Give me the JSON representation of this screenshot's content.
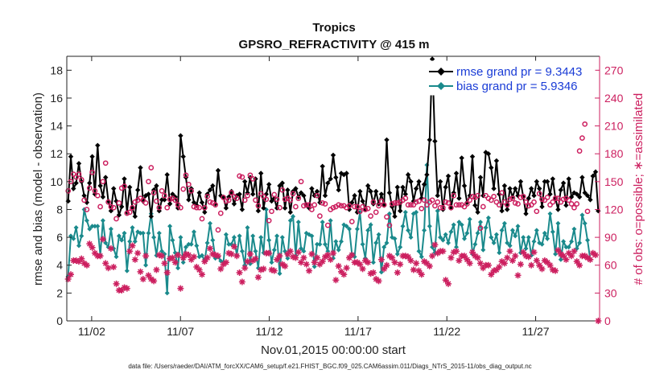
{
  "chart_data": {
    "type": "line",
    "title": "Tropics",
    "subtitle": "GPSRO_REFRACTIVITY @ 415 m",
    "xlabel": "Nov.01,2015 00:00:00 start",
    "ylabel": "rmse and bias (model - observation)",
    "y2label": "# of obs: o=possible; ∗=assimilated",
    "footnote": "data file: /Users/raeder/DAI/ATM_forcXX/CAM6_setup/f.e21.FHIST_BGC.f09_025.CAM6assim.011/Diags_NTrS_2015-11/obs_diag_output.nc",
    "xlim": [
      0.6,
      30.6
    ],
    "ylim": [
      0,
      19
    ],
    "y2lim": [
      0,
      285
    ],
    "xticks": [
      {
        "x": 2,
        "label": "11/02"
      },
      {
        "x": 7,
        "label": "11/07"
      },
      {
        "x": 12,
        "label": "11/12"
      },
      {
        "x": 17,
        "label": "11/17"
      },
      {
        "x": 22,
        "label": "11/22"
      },
      {
        "x": 27,
        "label": "11/27"
      }
    ],
    "yticks": [
      "0",
      "2",
      "4",
      "6",
      "8",
      "10",
      "12",
      "14",
      "16",
      "18"
    ],
    "yticks_right": [
      "0",
      "30",
      "60",
      "90",
      "120",
      "150",
      "180",
      "210",
      "240",
      "270"
    ],
    "legend": [
      {
        "label": "rmse grand pr = 9.3443",
        "color": "#000000"
      },
      {
        "label": "bias grand pr = 5.9346",
        "color": "#1a8a8c"
      }
    ],
    "series": [
      {
        "name": "rmse",
        "color": "#000000",
        "marker": "diamond",
        "values": [
          8.6,
          11.8,
          9.5,
          9.9,
          11.3,
          10.0,
          9.0,
          8.5,
          9.9,
          11.8,
          9.1,
          12.6,
          9.7,
          8.9,
          10.3,
          8.6,
          7.9,
          9.5,
          8.6,
          7.6,
          8.2,
          10.2,
          7.8,
          9.6,
          8.1,
          7.5,
          9.4,
          11.0,
          8.6,
          9.0,
          9.1,
          7.5,
          9.4,
          9.7,
          7.9,
          8.7,
          8.7,
          10.5,
          8.4,
          9.1,
          8.9,
          8.1,
          13.3,
          11.8,
          10.3,
          8.7,
          9.5,
          8.5,
          8.3,
          9.2,
          8.5,
          7.8,
          9.1,
          9.4,
          9.7,
          8.4,
          10.8,
          9.0,
          8.9,
          8.1,
          8.9,
          9.3,
          8.4,
          9.0,
          9.1,
          8.0,
          10.0,
          9.2,
          10.3,
          9.1,
          10.2,
          7.9,
          10.6,
          8.1,
          9.1,
          9.8,
          8.6,
          8.8,
          8.1,
          9.7,
          9.9,
          8.1,
          9.4,
          7.8,
          9.3,
          9.5,
          8.9,
          9.2,
          9.0,
          8.3,
          8.1,
          9.5,
          9.0,
          9.3,
          8.5,
          11.1,
          9.0,
          9.9,
          10.2,
          11.9,
          10.3,
          9.4,
          10.6,
          10.5,
          10.6,
          8.0,
          8.5,
          9.0,
          7.8,
          9.3,
          8.6,
          8.0,
          9.7,
          9.3,
          8.4,
          9.3,
          8.4,
          9.1,
          8.3,
          13.0,
          9.2,
          8.2,
          7.5,
          9.6,
          7.9,
          9.6,
          9.1,
          10.5,
          10.0,
          8.6,
          9.5,
          10.0,
          8.8,
          9.8,
          10.5,
          13.0,
          18.8,
          12.9,
          9.0,
          10.0,
          8.0,
          9.6,
          10.4,
          8.1,
          9.2,
          10.6,
          8.8,
          11.7,
          9.7,
          8.5,
          9.0,
          11.8,
          8.3,
          7.8,
          10.3,
          9.0,
          12.1,
          12.0,
          11.0,
          9.5,
          11.5,
          9.1,
          7.9,
          9.7,
          8.0,
          9.5,
          8.9,
          9.5,
          9.0,
          10.0,
          8.9,
          7.7,
          8.8,
          9.5,
          9.0,
          10.0,
          9.5,
          8.2,
          10.0,
          10.0,
          9.1,
          10.2,
          8.8,
          8.0,
          9.4,
          9.9,
          8.3,
          10.2,
          8.9,
          9.2,
          9.1,
          8.9,
          10.3,
          9.2,
          9.0,
          8.7,
          10.4,
          10.7,
          7.9
        ]
      },
      {
        "name": "bias",
        "color": "#1a8a8c",
        "marker": "diamond",
        "values": [
          3.2,
          6.1,
          5.9,
          6.7,
          5.4,
          6.1,
          8.0,
          7.2,
          6.6,
          6.8,
          6.8,
          6.8,
          4.7,
          7.2,
          5.6,
          5.3,
          6.6,
          5.2,
          4.6,
          6.1,
          5.8,
          6.3,
          3.6,
          5.7,
          6.7,
          5.7,
          6.4,
          6.3,
          6.3,
          4.0,
          6.3,
          7.7,
          6.0,
          4.7,
          6.3,
          5.0,
          4.8,
          2.0,
          6.8,
          5.8,
          4.9,
          3.8,
          6.0,
          4.2,
          5.3,
          5.5,
          5.5,
          6.4,
          5.4,
          4.6,
          4.7,
          4.3,
          5.6,
          7.0,
          5.8,
          4.5,
          4.6,
          4.3,
          4.2,
          6.2,
          5.5,
          5.5,
          6.0,
          4.7,
          6.1,
          5.0,
          4.0,
          6.7,
          4.1,
          6.1,
          5.0,
          3.8,
          6.0,
          4.9,
          8.0,
          5.8,
          4.2,
          5.1,
          6.1,
          3.4,
          6.0,
          5.0,
          4.5,
          7.2,
          7.5,
          4.7,
          7.1,
          5.2,
          5.0,
          6.3,
          6.2,
          6.1,
          3.9,
          5.5,
          5.5,
          7.1,
          5.5,
          5.0,
          7.2,
          4.5,
          5.7,
          5.1,
          5.7,
          6.9,
          6.8,
          6.6,
          4.8,
          4.6,
          6.6,
          7.8,
          5.5,
          4.5,
          6.5,
          6.9,
          4.2,
          5.6,
          6.2,
          3.5,
          5.3,
          5.6,
          7.7,
          6.0,
          5.9,
          4.8,
          5.3,
          6.8,
          7.8,
          6.5,
          6.0,
          7.7,
          7.8,
          5.0,
          4.6,
          6.5,
          11.2,
          6.8,
          5.3,
          4.9,
          7.9,
          6.0,
          5.8,
          6.2,
          5.6,
          6.4,
          6.9,
          5.3,
          7.1,
          6.9,
          5.9,
          6.3,
          7.3,
          4.8,
          5.5,
          6.3,
          7.1,
          5.1,
          6.7,
          7.4,
          6.0,
          5.6,
          6.2,
          4.9,
          6.5,
          7.0,
          5.6,
          5.4,
          6.5,
          6.1,
          6.8,
          4.9,
          6.0,
          5.2,
          6.0,
          4.7,
          5.7,
          6.5,
          5.6,
          5.5,
          6.3,
          5.9,
          7.7,
          6.4,
          4.8,
          7.0,
          4.4,
          5.7,
          5.3,
          5.3,
          5.7,
          6.6,
          5.2,
          5.6,
          7.6,
          7.0,
          5.8,
          4.4
        ]
      },
      {
        "name": "possible_obs",
        "color": "#cc1f5f",
        "marker": "circle",
        "axis": "right",
        "values": [
          140,
          150,
          158,
          155,
          158,
          152,
          130,
          120,
          143,
          160,
          140,
          135,
          123,
          150,
          170,
          128,
          123,
          122,
          110,
          127,
          143,
          145,
          116,
          117,
          122,
          128,
          130,
          132,
          130,
          127,
          150,
          165,
          138,
          129,
          122,
          140,
          135,
          122,
          131,
          132,
          130,
          125,
          122,
          142,
          157,
          147,
          140,
          123,
          122,
          122,
          110,
          122,
          134,
          128,
          127,
          125,
          98,
          116,
          133,
          129,
          130,
          138,
          134,
          132,
          156,
          155,
          130,
          135,
          157,
          153,
          130,
          124,
          137,
          134,
          131,
          108,
          118,
          136,
          131,
          122,
          141,
          131,
          132,
          130,
          137,
          123,
          132,
          150,
          124,
          125,
          125,
          120,
          125,
          135,
          113,
          127,
          126,
          103,
          120,
          122,
          123,
          125,
          124,
          124,
          122,
          124,
          107,
          123,
          123,
          118,
          123,
          120,
          121,
          113,
          128,
          117,
          124,
          129,
          125,
          112,
          103,
          126,
          127,
          127,
          128,
          130,
          132,
          125,
          125,
          125,
          128,
          129,
          121,
          130,
          125,
          128,
          130,
          124,
          128,
          122,
          122,
          128,
          127,
          122,
          135,
          125,
          125,
          125,
          123,
          126,
          130,
          134,
          133,
          135,
          100,
          123,
          135,
          132,
          130,
          134,
          128,
          125,
          138,
          128,
          125,
          131,
          132,
          127,
          126,
          133,
          134,
          128,
          124,
          125,
          128,
          118,
          137,
          131,
          130,
          133,
          125,
          128,
          132,
          132,
          128,
          131,
          132,
          130,
          126,
          122,
          126,
          183,
          197,
          212,
          118
        ]
      },
      {
        "name": "assimilated_obs",
        "color": "#cc1f5f",
        "marker": "asterisk",
        "axis": "right",
        "values": [
          45,
          50,
          65,
          65,
          64,
          67,
          62,
          60,
          83,
          79,
          73,
          70,
          70,
          88,
          62,
          57,
          78,
          58,
          40,
          33,
          33,
          36,
          35,
          75,
          81,
          66,
          73,
          53,
          45,
          70,
          49,
          45,
          43,
          55,
          71,
          70,
          62,
          52,
          67,
          68,
          63,
          71,
          35,
          68,
          72,
          71,
          66,
          69,
          58,
          55,
          50,
          64,
          68,
          78,
          72,
          71,
          70,
          56,
          61,
          63,
          73,
          72,
          80,
          70,
          52,
          42,
          57,
          64,
          72,
          65,
          67,
          47,
          55,
          56,
          73,
          73,
          55,
          54,
          66,
          70,
          61,
          59,
          72,
          75,
          69,
          68,
          74,
          63,
          68,
          61,
          54,
          72,
          63,
          68,
          61,
          64,
          69,
          71,
          66,
          73,
          44,
          59,
          53,
          50,
          57,
          68,
          71,
          63,
          63,
          61,
          56,
          65,
          63,
          51,
          52,
          45,
          43,
          66,
          56,
          60,
          70,
          68,
          63,
          52,
          61,
          70,
          70,
          69,
          65,
          55,
          62,
          54,
          50,
          64,
          62,
          59,
          70,
          82,
          73,
          75,
          75,
          44,
          40,
          68,
          74,
          75,
          65,
          70,
          70,
          66,
          62,
          74,
          70,
          68,
          62,
          57,
          60,
          60,
          50,
          54,
          55,
          58,
          64,
          62,
          68,
          75,
          65,
          70,
          49,
          61,
          74,
          70,
          69,
          60,
          74,
          65,
          60,
          56,
          65,
          63,
          60,
          55,
          54,
          76,
          72,
          70,
          66,
          73,
          70,
          75,
          64,
          60,
          70,
          70,
          68,
          66,
          73,
          71,
          0
        ]
      }
    ]
  }
}
